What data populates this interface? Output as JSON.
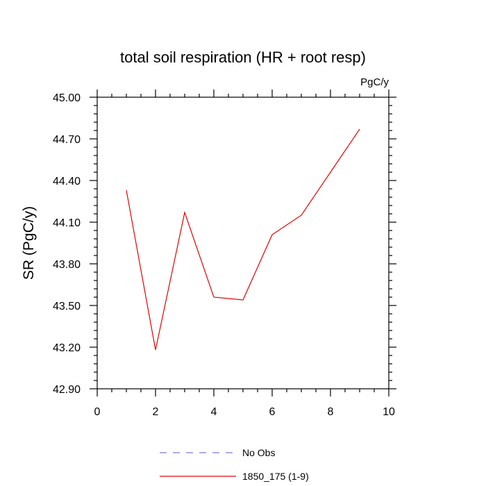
{
  "chart_data": {
    "type": "line",
    "title": "total soil respiration (HR + root resp)",
    "units_label": "PgC/y",
    "xlabel": "",
    "ylabel": "SR  (PgC/y)",
    "xlim": [
      0,
      10
    ],
    "ylim": [
      42.9,
      45.0
    ],
    "x_ticks": [
      0,
      2,
      4,
      6,
      8,
      10
    ],
    "x_tick_labels": [
      "0",
      "2",
      "4",
      "6",
      "8",
      "10"
    ],
    "y_ticks": [
      42.9,
      43.2,
      43.5,
      43.8,
      44.1,
      44.4,
      44.7,
      45.0
    ],
    "y_tick_labels": [
      "42.90",
      "43.20",
      "43.50",
      "43.80",
      "44.10",
      "44.40",
      "44.70",
      "45.00"
    ],
    "x_minor_step": 0.5,
    "y_minor_step": 0.06,
    "grid": false,
    "legend_placement": "bottom-center",
    "series": [
      {
        "name": "No Obs",
        "color": "#7b7bdc",
        "dash": true,
        "x": [],
        "values": []
      },
      {
        "name": "1850_175 (1-9)",
        "color": "#e60000",
        "dash": false,
        "x": [
          1,
          2,
          3,
          4,
          5,
          6,
          7,
          8,
          9
        ],
        "values": [
          44.33,
          43.18,
          44.17,
          43.56,
          43.54,
          44.01,
          44.15,
          44.46,
          44.77
        ]
      }
    ]
  }
}
